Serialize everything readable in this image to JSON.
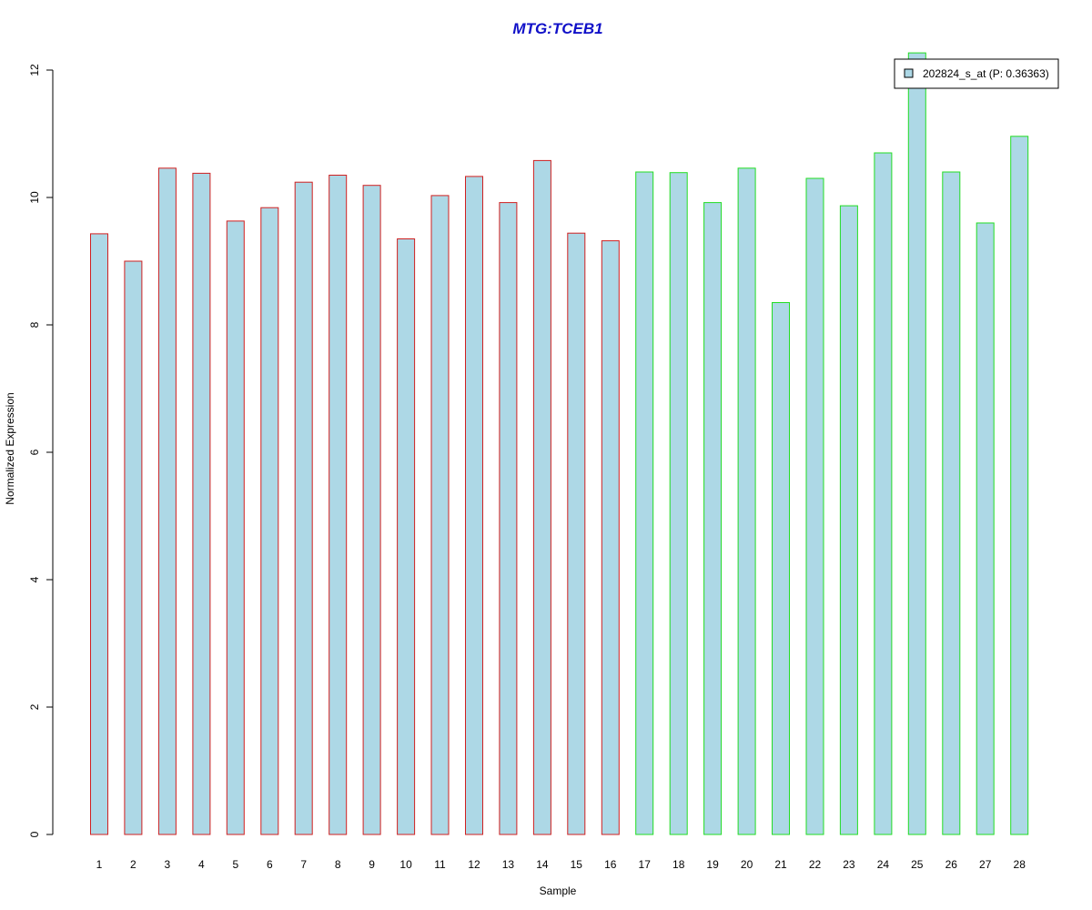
{
  "chart_data": {
    "type": "bar",
    "title": "MTG:TCEB1",
    "xlabel": "Sample",
    "ylabel": "Normalized Expression",
    "ylim": [
      0,
      12
    ],
    "yticks": [
      0,
      2,
      4,
      6,
      8,
      10,
      12
    ],
    "categories": [
      "1",
      "2",
      "3",
      "4",
      "5",
      "6",
      "7",
      "8",
      "9",
      "10",
      "11",
      "12",
      "13",
      "14",
      "15",
      "16",
      "17",
      "18",
      "19",
      "20",
      "21",
      "22",
      "23",
      "24",
      "25",
      "26",
      "27",
      "28"
    ],
    "series": [
      {
        "name": "202824_s_at (P: 0.36363)",
        "values": [
          9.43,
          9.0,
          10.46,
          10.38,
          9.63,
          9.84,
          10.24,
          10.35,
          10.19,
          9.35,
          10.03,
          10.33,
          9.92,
          10.58,
          9.44,
          9.32,
          10.4,
          10.39,
          9.92,
          10.46,
          8.35,
          10.3,
          9.87,
          10.7,
          12.27,
          10.4,
          9.6,
          10.96
        ]
      }
    ],
    "groups": [
      {
        "from": 1,
        "to": 16,
        "border_color": "#d02020"
      },
      {
        "from": 17,
        "to": 28,
        "border_color": "#22dd22"
      }
    ],
    "bar_fill": "#add8e6",
    "title_color": "#1010c8",
    "legend": {
      "label": "202824_s_at (P: 0.36363)",
      "position": "top-right"
    },
    "grid": false
  }
}
